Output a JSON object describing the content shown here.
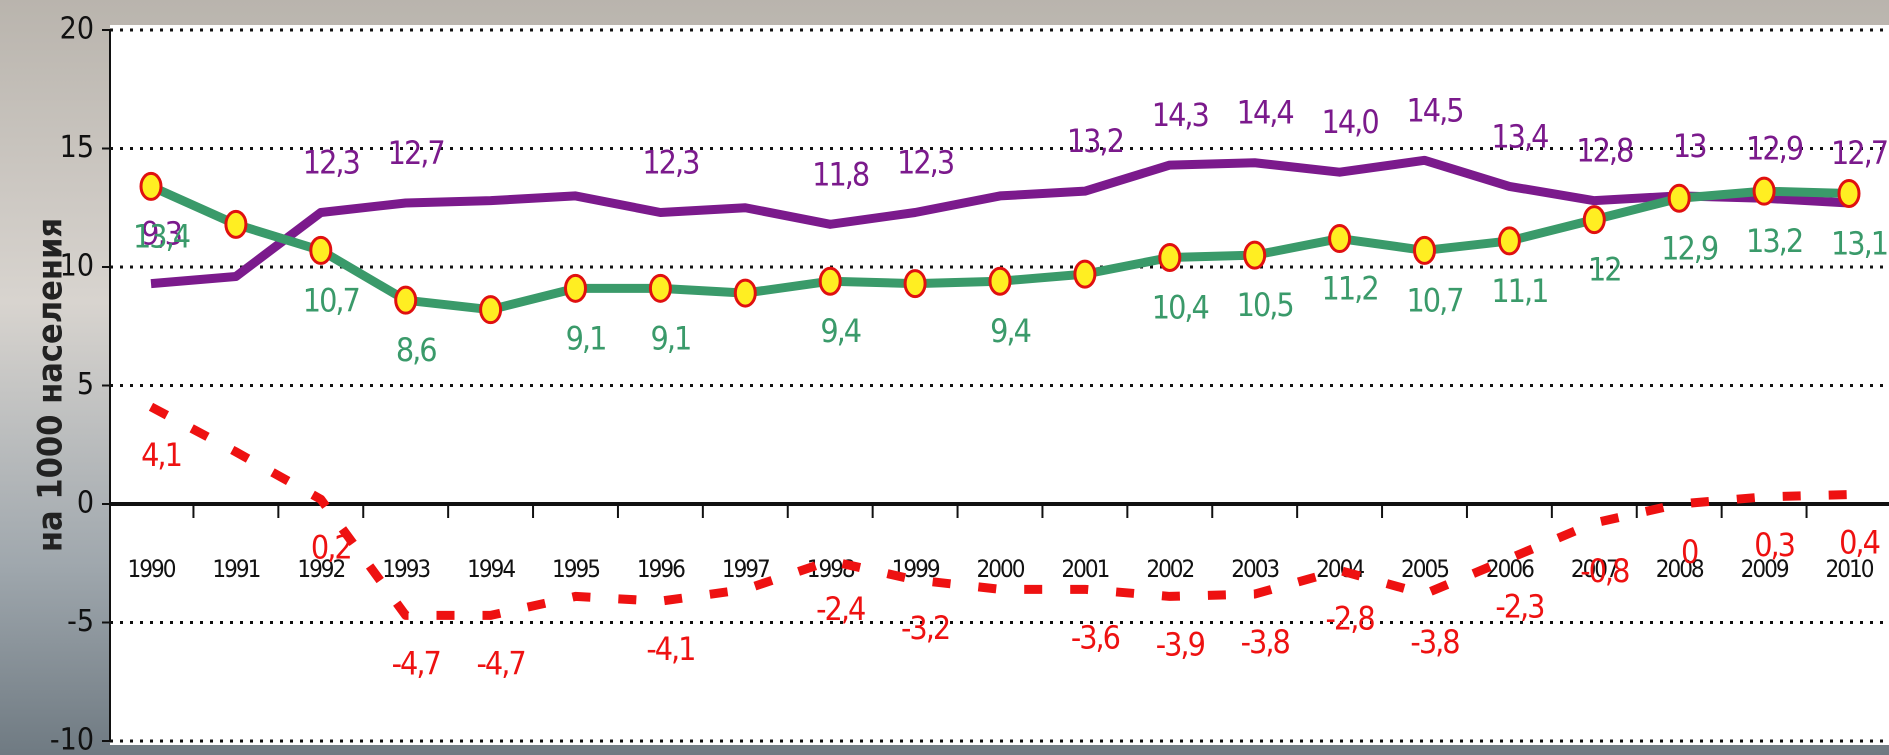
{
  "chart_data": {
    "type": "line",
    "y_label": "на 1000 населения",
    "categories": [
      "1990",
      "1991",
      "1992",
      "1993",
      "1994",
      "1995",
      "1996",
      "1997",
      "1998",
      "1999",
      "2000",
      "2001",
      "2002",
      "2003",
      "2004",
      "2005",
      "2006",
      "2007",
      "2008",
      "2009",
      "2010"
    ],
    "ylim": [
      -10,
      20
    ],
    "yticks": [
      -10,
      -5,
      0,
      5,
      10,
      15,
      20
    ],
    "grid": true,
    "series": [
      {
        "color": "#7b1a8c",
        "style": "solid",
        "values": [
          9.3,
          9.6,
          12.3,
          12.7,
          12.8,
          13.0,
          12.3,
          12.5,
          11.8,
          12.3,
          13.0,
          13.2,
          14.3,
          14.4,
          14.0,
          14.5,
          13.4,
          12.8,
          13,
          12.9,
          12.7
        ],
        "value_labels": [
          "9,3",
          null,
          "12,3",
          "12,7",
          null,
          null,
          "12,3",
          null,
          "11,8",
          "12,3",
          null,
          "13,2",
          "14,3",
          "14,4",
          "14,0",
          "14,5",
          "13,4",
          "12,8",
          "13",
          "12,9",
          "12,7"
        ]
      },
      {
        "color": "#3a9a6a",
        "style": "solid",
        "values": [
          13.4,
          11.8,
          10.7,
          8.6,
          8.2,
          9.1,
          9.1,
          8.9,
          9.4,
          9.3,
          9.4,
          9.7,
          10.4,
          10.5,
          11.2,
          10.7,
          11.1,
          12,
          12.9,
          13.2,
          13.1
        ],
        "value_labels": [
          "13,4",
          null,
          "10,7",
          "8,6",
          null,
          "9,1",
          "9,1",
          null,
          "9,4",
          null,
          "9,4",
          null,
          "10,4",
          "10,5",
          "11,2",
          "10,7",
          "11,1",
          "12",
          "12,9",
          "13,2",
          "13,1"
        ]
      },
      {
        "color": "#ee1111",
        "style": "dashed",
        "values": [
          4.1,
          2.2,
          0.2,
          -4.7,
          -4.7,
          -3.9,
          -4.1,
          -3.6,
          -2.4,
          -3.2,
          -3.6,
          -3.6,
          -3.9,
          -3.8,
          -2.8,
          -3.8,
          -2.3,
          -0.8,
          0,
          0.3,
          0.4
        ],
        "value_labels": [
          "4,1",
          null,
          "0,2",
          "-4,7",
          "-4,7",
          null,
          "-4,1",
          null,
          "-2,4",
          "-3,2",
          null,
          "-3,6",
          "-3,9",
          "-3,8",
          "-2,8",
          "-3,8",
          "-2,3",
          "-0,8",
          "0",
          "0,3",
          "0,4"
        ]
      }
    ]
  }
}
